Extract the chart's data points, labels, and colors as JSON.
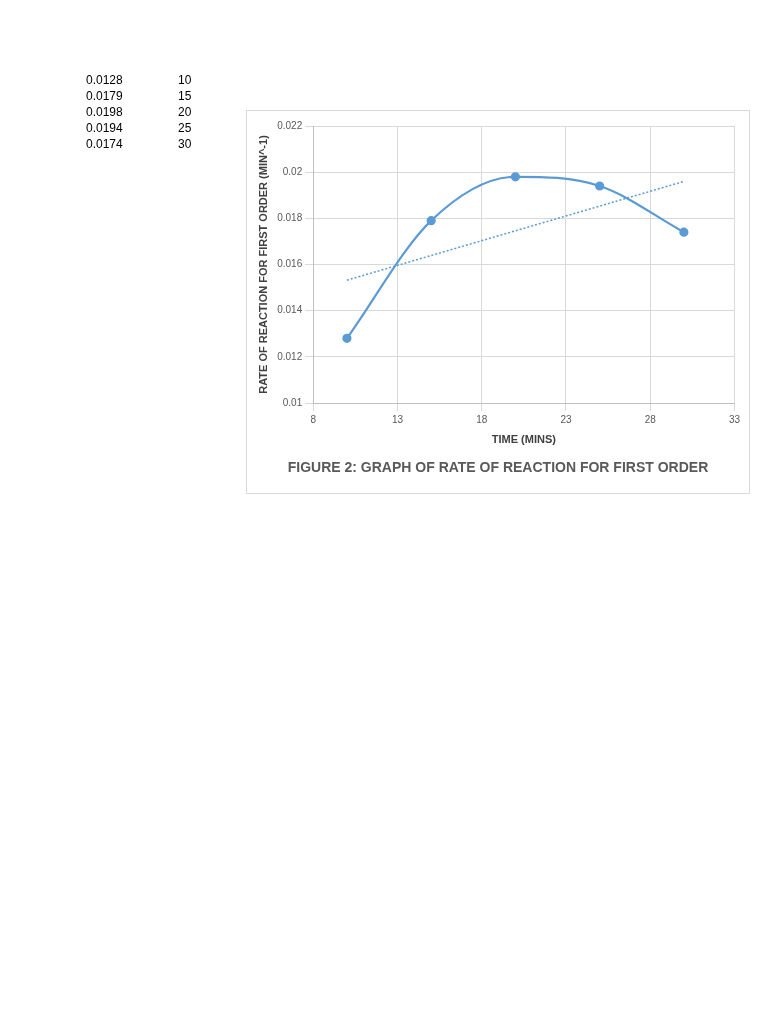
{
  "chart_data": {
    "type": "line",
    "title": "FIGURE 2: GRAPH OF RATE OF REACTION FOR FIRST ORDER",
    "xlabel": "TIME (MINS)",
    "ylabel": "RATE OF REACTION FOR FIRST ORDER (MIN^-1)",
    "x": [
      10,
      15,
      20,
      25,
      30
    ],
    "series": [
      {
        "color": "#5b9bd5",
        "values": [
          0.0128,
          0.0179,
          0.0198,
          0.0194,
          0.0174
        ],
        "marker": "circle",
        "line_style": "solid"
      },
      {
        "color": "#5b9bd5",
        "x": [
          10,
          30
        ],
        "values": [
          0.01532,
          0.0196
        ],
        "marker": "none",
        "line_style": "dotted"
      }
    ],
    "xlim": [
      8,
      33
    ],
    "xticks": [
      8,
      13,
      18,
      23,
      28,
      33
    ],
    "ylim": [
      0.01,
      0.022
    ],
    "yticks": [
      0.01,
      0.012,
      0.014,
      0.016,
      0.018,
      0.02,
      0.022
    ],
    "grid": true,
    "legend": false,
    "annotations": [
      "0.0128",
      "10",
      "0.0179",
      "15",
      "0.0198",
      "20",
      "0.0194",
      "25",
      "0.0174",
      "30"
    ]
  }
}
